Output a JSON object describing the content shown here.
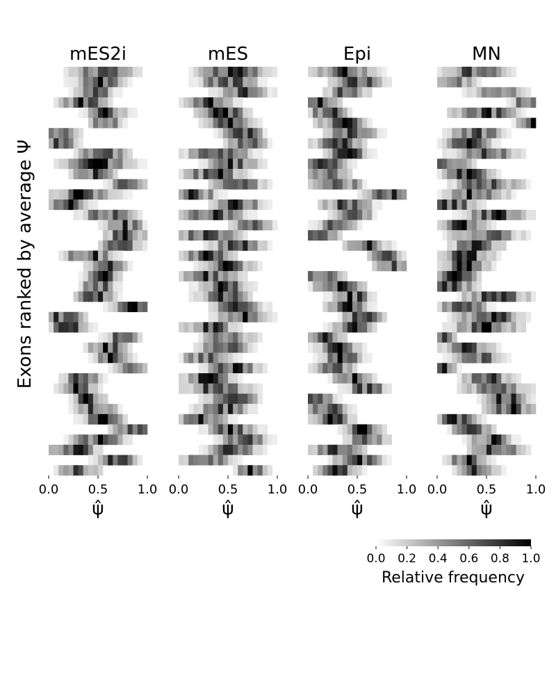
{
  "chart_data": {
    "type": "heatmap",
    "ylabel": "Exons ranked by average Ψ",
    "xlabel": "ψ̂",
    "xlim": [
      0.0,
      1.0
    ],
    "xticks": [
      "0.0",
      "0.5",
      "1.0"
    ],
    "bins": 20,
    "rows": 40,
    "colormap": "Greys",
    "colorbar": {
      "label": "Relative frequency",
      "ticks": [
        "0.0",
        "0.2",
        "0.4",
        "0.6",
        "0.8",
        "1.0"
      ],
      "range": [
        0.0,
        1.0
      ]
    },
    "panels": [
      {
        "title": "mES2i",
        "centers": [
          0.55,
          0.52,
          0.45,
          0.35,
          0.6,
          0.58,
          0.1,
          0.12,
          0.55,
          0.5,
          0.45,
          0.8,
          0.35,
          0.2,
          0.6,
          0.75,
          0.78,
          0.72,
          0.4,
          0.6,
          0.55,
          0.5,
          0.48,
          0.85,
          0.15,
          0.2,
          0.75,
          0.6,
          0.65,
          0.85,
          0.35,
          0.3,
          0.4,
          0.5,
          0.55,
          0.85,
          0.5,
          0.25,
          0.7,
          0.3
        ],
        "spreads": [
          0.18,
          0.15,
          0.12,
          0.14,
          0.12,
          0.1,
          0.12,
          0.12,
          0.15,
          0.2,
          0.12,
          0.1,
          0.2,
          0.12,
          0.15,
          0.12,
          0.12,
          0.12,
          0.15,
          0.12,
          0.1,
          0.1,
          0.12,
          0.12,
          0.12,
          0.12,
          0.1,
          0.12,
          0.1,
          0.1,
          0.12,
          0.12,
          0.1,
          0.12,
          0.12,
          0.12,
          0.15,
          0.15,
          0.12,
          0.12
        ]
      },
      {
        "title": "mES",
        "centers": [
          0.55,
          0.5,
          0.65,
          0.3,
          0.45,
          0.5,
          0.65,
          0.7,
          0.4,
          0.55,
          0.35,
          0.6,
          0.15,
          0.6,
          0.35,
          0.75,
          0.3,
          0.6,
          0.3,
          0.5,
          0.3,
          0.45,
          0.45,
          0.6,
          0.65,
          0.3,
          0.5,
          0.45,
          0.3,
          0.55,
          0.3,
          0.4,
          0.55,
          0.45,
          0.25,
          0.55,
          0.65,
          0.55,
          0.3,
          0.75
        ],
        "spreads": [
          0.2,
          0.18,
          0.15,
          0.15,
          0.15,
          0.15,
          0.12,
          0.12,
          0.2,
          0.15,
          0.18,
          0.15,
          0.15,
          0.15,
          0.18,
          0.12,
          0.18,
          0.15,
          0.15,
          0.15,
          0.18,
          0.15,
          0.15,
          0.15,
          0.15,
          0.15,
          0.15,
          0.15,
          0.15,
          0.15,
          0.15,
          0.2,
          0.15,
          0.15,
          0.15,
          0.15,
          0.15,
          0.15,
          0.15,
          0.1
        ]
      },
      {
        "title": "Epi",
        "centers": [
          0.35,
          0.5,
          0.4,
          0.1,
          0.2,
          0.35,
          0.45,
          0.3,
          0.4,
          0.15,
          0.2,
          0.3,
          0.85,
          0.4,
          0.45,
          0.3,
          0.1,
          0.6,
          0.8,
          0.85,
          0.15,
          0.3,
          0.45,
          0.4,
          0.55,
          0.45,
          0.15,
          0.3,
          0.35,
          0.25,
          0.45,
          0.6,
          0.1,
          0.2,
          0.25,
          0.55,
          0.6,
          0.3,
          0.5,
          0.3
        ],
        "spreads": [
          0.2,
          0.15,
          0.12,
          0.12,
          0.12,
          0.15,
          0.15,
          0.15,
          0.12,
          0.15,
          0.12,
          0.15,
          0.15,
          0.15,
          0.12,
          0.12,
          0.12,
          0.12,
          0.1,
          0.1,
          0.12,
          0.15,
          0.12,
          0.12,
          0.12,
          0.12,
          0.12,
          0.12,
          0.12,
          0.12,
          0.12,
          0.12,
          0.1,
          0.12,
          0.12,
          0.12,
          0.12,
          0.15,
          0.15,
          0.12
        ]
      },
      {
        "title": "MN",
        "centers": [
          0.4,
          0.15,
          0.6,
          0.9,
          0.5,
          0.95,
          0.4,
          0.3,
          0.5,
          0.1,
          0.3,
          0.5,
          0.4,
          0.15,
          0.6,
          0.25,
          0.5,
          0.4,
          0.3,
          0.3,
          0.2,
          0.15,
          0.6,
          0.25,
          0.55,
          0.5,
          0.05,
          0.3,
          0.4,
          0.05,
          0.5,
          0.6,
          0.7,
          0.75,
          0.2,
          0.35,
          0.55,
          0.6,
          0.3,
          0.4
        ],
        "spreads": [
          0.18,
          0.12,
          0.15,
          0.08,
          0.2,
          0.08,
          0.15,
          0.15,
          0.2,
          0.15,
          0.15,
          0.2,
          0.18,
          0.15,
          0.18,
          0.15,
          0.2,
          0.15,
          0.15,
          0.15,
          0.12,
          0.15,
          0.2,
          0.15,
          0.2,
          0.2,
          0.08,
          0.15,
          0.15,
          0.08,
          0.15,
          0.18,
          0.15,
          0.15,
          0.12,
          0.12,
          0.12,
          0.15,
          0.12,
          0.12
        ]
      }
    ]
  }
}
